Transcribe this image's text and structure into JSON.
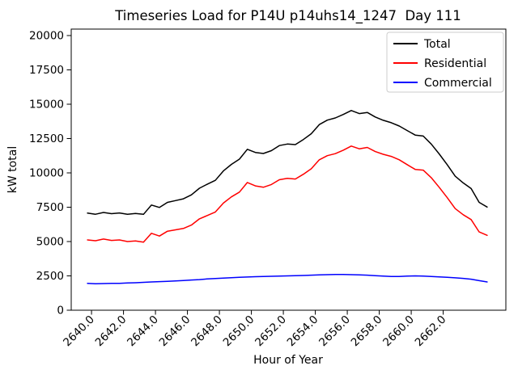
{
  "chart_data": {
    "type": "line",
    "title": "Timeseries Load for P14U p14uhs14_1247  Day 111",
    "xlabel": "Hour of Year",
    "ylabel": "kW total",
    "xlim": [
      2638.73,
      2665.92
    ],
    "ylim": [
      0,
      20470
    ],
    "grid": false,
    "legend_position": "upper right",
    "x_ticks": [
      2640,
      2642,
      2644,
      2646,
      2648,
      2650,
      2652,
      2654,
      2656,
      2658,
      2660,
      2662
    ],
    "x_tick_labels": [
      "2640.0",
      "2642.0",
      "2644.0",
      "2646.0",
      "2648.0",
      "2650.0",
      "2652.0",
      "2654.0",
      "2656.0",
      "2658.0",
      "2660.0",
      "2662.0"
    ],
    "y_ticks": [
      0,
      2500,
      5000,
      7500,
      10000,
      12500,
      15000,
      17500,
      20000
    ],
    "y_tick_labels": [
      "0",
      "2500",
      "5000",
      "7500",
      "10000",
      "12500",
      "15000",
      "17500",
      "20000"
    ],
    "x": [
      2639.75,
      2640.25,
      2640.75,
      2641.25,
      2641.75,
      2642.25,
      2642.75,
      2643.25,
      2643.75,
      2644.25,
      2644.75,
      2645.25,
      2645.75,
      2646.25,
      2646.75,
      2647.25,
      2647.75,
      2648.25,
      2648.75,
      2649.25,
      2649.75,
      2650.25,
      2650.75,
      2651.25,
      2651.75,
      2652.25,
      2652.75,
      2653.25,
      2653.75,
      2654.25,
      2654.75,
      2655.25,
      2655.75,
      2656.25,
      2656.75,
      2657.25,
      2657.75,
      2658.25,
      2658.75,
      2659.25,
      2659.75,
      2660.25,
      2660.75,
      2661.25,
      2661.75,
      2662.25,
      2662.75,
      2663.25,
      2663.75,
      2664.25,
      2664.75
    ],
    "series": [
      {
        "name": "Total",
        "color": "#000000",
        "values": [
          7070,
          6990,
          7120,
          7030,
          7080,
          6980,
          7040,
          6980,
          7660,
          7480,
          7850,
          7980,
          8110,
          8400,
          8880,
          9180,
          9460,
          10140,
          10620,
          11000,
          11720,
          11490,
          11410,
          11620,
          11990,
          12100,
          12060,
          12430,
          12850,
          13520,
          13840,
          14000,
          14250,
          14540,
          14320,
          14400,
          14070,
          13830,
          13650,
          13410,
          13080,
          12750,
          12680,
          12100,
          11380,
          10600,
          9760,
          9270,
          8860,
          7850,
          7510
        ]
      },
      {
        "name": "Residential",
        "color": "#ff0000",
        "values": [
          5120,
          5060,
          5180,
          5080,
          5120,
          5000,
          5040,
          4950,
          5600,
          5400,
          5750,
          5850,
          5950,
          6200,
          6650,
          6900,
          7150,
          7800,
          8250,
          8600,
          9300,
          9050,
          8950,
          9150,
          9500,
          9600,
          9550,
          9900,
          10300,
          10950,
          11250,
          11400,
          11650,
          11950,
          11750,
          11850,
          11550,
          11350,
          11200,
          10950,
          10600,
          10250,
          10200,
          9650,
          8950,
          8200,
          7400,
          6950,
          6600,
          5700,
          5450
        ]
      },
      {
        "name": "Commercial",
        "color": "#0000ff",
        "values": [
          1950,
          1930,
          1940,
          1950,
          1960,
          1980,
          2000,
          2030,
          2060,
          2080,
          2100,
          2130,
          2160,
          2200,
          2230,
          2280,
          2310,
          2340,
          2370,
          2400,
          2420,
          2440,
          2460,
          2470,
          2490,
          2500,
          2510,
          2530,
          2550,
          2570,
          2590,
          2600,
          2600,
          2590,
          2570,
          2550,
          2520,
          2480,
          2450,
          2460,
          2480,
          2500,
          2480,
          2450,
          2430,
          2400,
          2360,
          2320,
          2260,
          2150,
          2060
        ]
      }
    ]
  }
}
